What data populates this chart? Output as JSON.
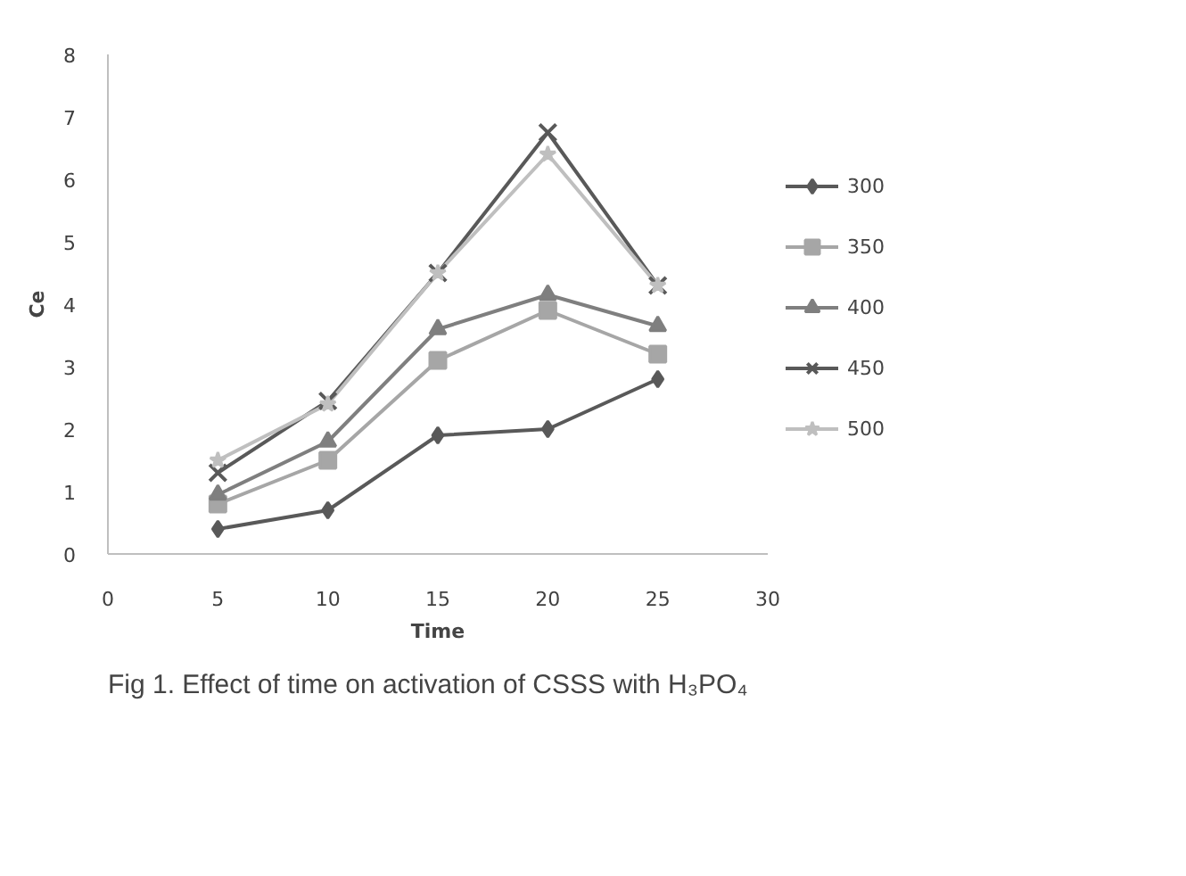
{
  "chart_data": {
    "type": "line",
    "xlabel": "Time",
    "ylabel": "Ce",
    "x": [
      5,
      10,
      15,
      20,
      25
    ],
    "xlim": [
      0,
      30
    ],
    "xticks": [
      0,
      5,
      10,
      15,
      20,
      25,
      30
    ],
    "ylim": [
      0,
      8
    ],
    "yticks": [
      0,
      1,
      2,
      3,
      4,
      5,
      6,
      7,
      8
    ],
    "grid": false,
    "legend": "right",
    "series": [
      {
        "name": "300",
        "color": "#595959",
        "marker": "diamond",
        "values": [
          0.4,
          0.7,
          1.9,
          2.0,
          2.8
        ]
      },
      {
        "name": "350",
        "color": "#a6a6a6",
        "marker": "square",
        "values": [
          0.8,
          1.5,
          3.1,
          3.9,
          3.2
        ]
      },
      {
        "name": "400",
        "color": "#7f7f7f",
        "marker": "triangle",
        "values": [
          0.95,
          1.8,
          3.6,
          4.15,
          3.65
        ]
      },
      {
        "name": "450",
        "color": "#595959",
        "marker": "cross",
        "values": [
          1.3,
          2.45,
          4.5,
          6.75,
          4.3
        ]
      },
      {
        "name": "500",
        "color": "#bfbfbf",
        "marker": "star",
        "values": [
          1.5,
          2.4,
          4.5,
          6.4,
          4.3
        ]
      }
    ],
    "annotations": [
      "Fig 1. Effect of time on activation of CSSS with H₃PO₄"
    ]
  }
}
